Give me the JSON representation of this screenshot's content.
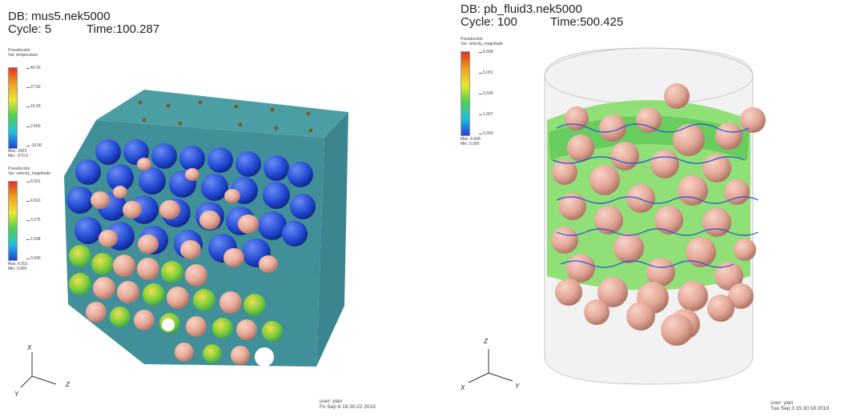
{
  "left": {
    "db": "DB: mus5.nek5000",
    "cycle_label": "Cycle: 5",
    "time_label": "Time:100.287",
    "legend1": {
      "title": "Pseudocolor",
      "var": "Var: temperature",
      "ticks": [
        "40.00",
        "27.50",
        "15.00",
        "2.500",
        "-10.00"
      ],
      "max": "Max: 2422",
      "min": "Min: -570.0"
    },
    "legend2": {
      "title": "Pseudocolor",
      "var": "Var: velocity_magnitude",
      "ticks": [
        "6.551",
        "4.913",
        "3.275",
        "1.638",
        "0.000"
      ],
      "max": "Max: 6.551",
      "min": "Min: 0.000"
    },
    "axes": {
      "x": "X",
      "y": "Y",
      "z": "Z"
    },
    "user": "user: ylan",
    "date": "Fri Sep  6 18:30:22 2019"
  },
  "right": {
    "db": "DB: pb_fluid3.nek5000",
    "cycle_label": "Cycle: 100",
    "time_label": "Time:500.425",
    "legend1": {
      "title": "Pseudocolor",
      "var": "Var: velocity_magnitude",
      "ticks": [
        "6.668",
        "5.001",
        "3.334",
        "1.667",
        "0.000"
      ],
      "max": "Max: 6.668",
      "min": "Min: 0.000"
    },
    "axes": {
      "x": "X",
      "y": "Y",
      "z": "Z"
    },
    "user": "user: ylan",
    "date": "Tue Sep  3 15:30:18 2019"
  },
  "colors": {
    "sphere": "#e8aa98",
    "box_face": "#3f8d96",
    "box_top": "#4c9ea5",
    "vortex_blue": "#1f4fd6",
    "vortex_green": "#5fd23c",
    "cylinder": "#dcdcdc"
  }
}
